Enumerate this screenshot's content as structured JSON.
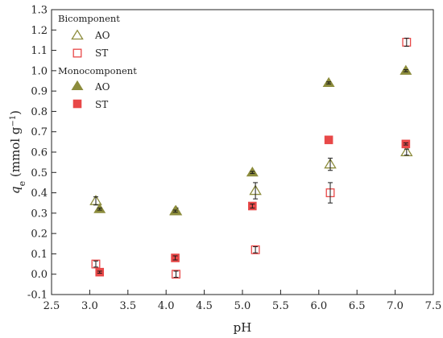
{
  "chart_data": {
    "type": "scatter",
    "xlabel": "pH",
    "ylabel": {
      "main": "q",
      "sub": "e",
      "unit_prefix": " (mmol g",
      "unit_sup": "−1",
      "unit_suffix": ")"
    },
    "xlim": [
      2.5,
      7.5
    ],
    "ylim": [
      -0.1,
      1.3
    ],
    "xticks": [
      "2.5",
      "3.0",
      "3.5",
      "4.0",
      "4.5",
      "5.0",
      "5.5",
      "6.0",
      "6.5",
      "7.0",
      "7.5"
    ],
    "yticks": [
      "-0.1",
      "0.0",
      "0.1",
      "0.2",
      "0.3",
      "0.4",
      "0.5",
      "0.6",
      "0.7",
      "0.8",
      "0.9",
      "1.0",
      "1.1",
      "1.2",
      "1.3"
    ],
    "grid": false,
    "legend_position": "top-left",
    "legend_groups": [
      "Bicomponent",
      "Monocomponent"
    ],
    "colors": {
      "olive": "#8c8c3c",
      "red": "#e84848",
      "error": "#1a1a1a"
    },
    "series": [
      {
        "name": "AO",
        "group": "Bicomponent",
        "marker": "triangle-open",
        "color": "#8c8c3c",
        "points": [
          {
            "x": 3.08,
            "y": 0.36,
            "err": 0.02
          },
          {
            "x": 4.13,
            "y": 0.31,
            "err": 0.015
          },
          {
            "x": 5.17,
            "y": 0.41,
            "err": 0.04
          },
          {
            "x": 6.15,
            "y": 0.54,
            "err": 0.03
          },
          {
            "x": 7.15,
            "y": 0.6,
            "err": 0.015
          }
        ]
      },
      {
        "name": "ST",
        "group": "Bicomponent",
        "marker": "square-open",
        "color": "#e84848",
        "points": [
          {
            "x": 3.08,
            "y": 0.05,
            "err": 0.015
          },
          {
            "x": 4.13,
            "y": 0.0,
            "err": 0.015
          },
          {
            "x": 5.17,
            "y": 0.12,
            "err": 0.015
          },
          {
            "x": 6.15,
            "y": 0.4,
            "err": 0.05
          },
          {
            "x": 7.15,
            "y": 1.14,
            "err": 0.02
          }
        ]
      },
      {
        "name": "AO",
        "group": "Monocomponent",
        "marker": "triangle-filled",
        "color": "#8c8c3c",
        "points": [
          {
            "x": 3.13,
            "y": 0.32,
            "err": 0.005
          },
          {
            "x": 4.12,
            "y": 0.31,
            "err": 0.005
          },
          {
            "x": 5.13,
            "y": 0.5,
            "err": 0.005
          },
          {
            "x": 6.13,
            "y": 0.94,
            "err": 0.005
          },
          {
            "x": 7.14,
            "y": 1.0,
            "err": 0.005
          }
        ]
      },
      {
        "name": "ST",
        "group": "Monocomponent",
        "marker": "square-filled",
        "color": "#e84848",
        "points": [
          {
            "x": 3.13,
            "y": 0.01,
            "err": 0.005
          },
          {
            "x": 4.12,
            "y": 0.08,
            "err": 0.01
          },
          {
            "x": 5.13,
            "y": 0.335,
            "err": 0.01
          },
          {
            "x": 6.13,
            "y": 0.66,
            "err": 0.0
          },
          {
            "x": 7.14,
            "y": 0.64,
            "err": 0.005
          }
        ]
      }
    ]
  }
}
